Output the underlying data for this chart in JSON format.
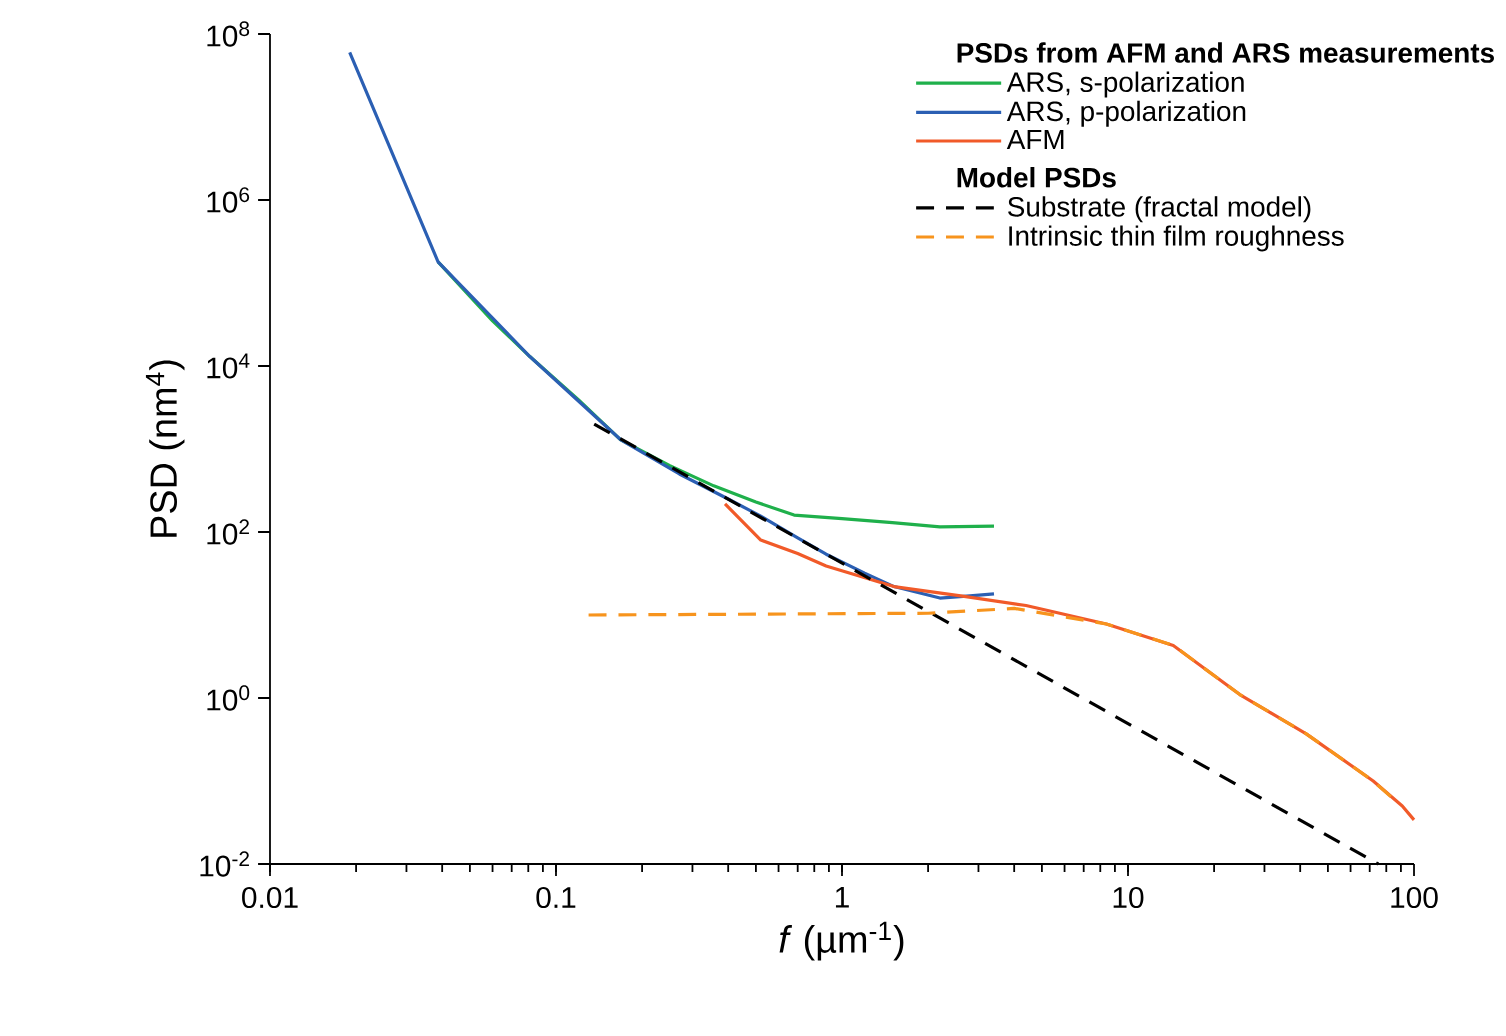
{
  "chart_data": {
    "type": "line",
    "xlabel": "*f* (µm$^{-1}$)",
    "ylabel": "PSD (nm$^{4}$)",
    "log": "xy",
    "xlim": [
      0.01,
      100
    ],
    "ylim": [
      0.01,
      100000000
    ],
    "xticks": [
      0.01,
      0.1,
      1,
      10,
      100
    ],
    "yticks": [
      {
        "value": 0.01,
        "label": "10$^{-2}$"
      },
      {
        "value": 1,
        "label": "10$^{0}$"
      },
      {
        "value": 100,
        "label": "10$^{2}$"
      },
      {
        "value": 10000,
        "label": "10$^{4}$"
      },
      {
        "value": 1000000,
        "label": "10$^{6}$"
      },
      {
        "value": 100000000,
        "label": "10$^{8}$"
      }
    ],
    "legend": "top right",
    "legend_title": "PSDs from AFM and ARS measurements",
    "annotations": [
      "Model PSDs"
    ],
    "series": [
      {
        "name": "ARS, s-polarization",
        "color": "#1fb04b",
        "line_style": "solid",
        "x": [
          0.0387,
          0.06,
          0.081,
          0.12,
          0.168,
          0.25,
          0.356,
          0.5,
          0.68,
          1.0,
          1.5,
          2.2,
          3.4
        ],
        "values": [
          180000,
          35000,
          13000,
          3900,
          1300,
          630,
          360,
          230,
          160,
          145,
          130,
          115,
          118
        ]
      },
      {
        "name": "ARS, p-polarization",
        "color": "#2b5fb3",
        "line_style": "solid",
        "x": [
          0.019,
          0.0387,
          0.081,
          0.168,
          0.27,
          0.4,
          0.52,
          0.7,
          0.88,
          1.2,
          1.52,
          2.2,
          2.8,
          3.4
        ],
        "values": [
          60000000,
          180000,
          13000,
          1300,
          500,
          250,
          155,
          85,
          54,
          32,
          22,
          16,
          17,
          18
        ]
      },
      {
        "name": "AFM",
        "color": "#f15a29",
        "line_style": "solid",
        "x": [
          0.39,
          0.52,
          0.7,
          0.88,
          1.52,
          2.6,
          4.4,
          8.4,
          14.4,
          24.6,
          42,
          72,
          91,
          100
        ],
        "values": [
          218,
          80,
          55,
          39,
          22,
          17,
          13,
          7.8,
          4.3,
          1.1,
          0.37,
          0.1,
          0.05,
          0.034
        ]
      },
      {
        "name": "Substrate (fractal model)",
        "color": "#000000",
        "line_style": "dashed",
        "x": [
          0.136,
          75
        ],
        "values": [
          2000,
          0.01
        ]
      },
      {
        "name": "Intrinsic thin film roughness",
        "color": "#f7941d",
        "line_style": "dashed",
        "x": [
          0.13,
          2.0,
          4.0,
          8.4,
          14.4,
          24.6,
          42,
          72,
          85
        ],
        "values": [
          10,
          10.5,
          12,
          7.8,
          4.3,
          1.1,
          0.37,
          0.1,
          0.06
        ]
      }
    ]
  }
}
